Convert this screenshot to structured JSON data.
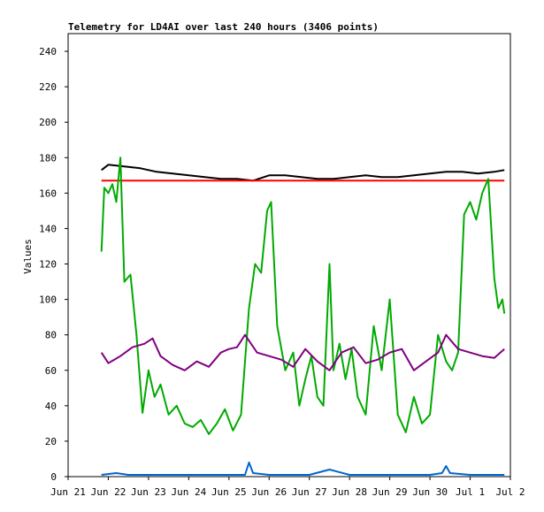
{
  "chart_data": {
    "type": "line",
    "title": "Telemetry for LD4AI over last 240 hours (3406 points)",
    "xlabel": "",
    "ylabel": "Values",
    "xlim": [
      0,
      11
    ],
    "ylim": [
      0,
      250
    ],
    "x_ticks": [
      {
        "value": 0,
        "label": "Jun 21"
      },
      {
        "value": 1,
        "label": "Jun 22"
      },
      {
        "value": 2,
        "label": "Jun 23"
      },
      {
        "value": 3,
        "label": "Jun 24"
      },
      {
        "value": 4,
        "label": "Jun 25"
      },
      {
        "value": 5,
        "label": "Jun 26"
      },
      {
        "value": 6,
        "label": "Jun 27"
      },
      {
        "value": 7,
        "label": "Jun 28"
      },
      {
        "value": 8,
        "label": "Jun 29"
      },
      {
        "value": 9,
        "label": "Jun 30"
      },
      {
        "value": 10,
        "label": "Jul 1"
      },
      {
        "value": 11,
        "label": "Jul 2"
      }
    ],
    "y_ticks": [
      0,
      20,
      40,
      60,
      80,
      100,
      120,
      140,
      160,
      180,
      200,
      220,
      240
    ],
    "grid": false,
    "legend": "none",
    "series": [
      {
        "color": "#000000",
        "x": [
          0.83,
          1.0,
          1.4,
          1.8,
          2.2,
          2.6,
          3.0,
          3.4,
          3.8,
          4.2,
          4.6,
          5.0,
          5.4,
          5.8,
          6.2,
          6.6,
          7.0,
          7.4,
          7.8,
          8.2,
          8.6,
          9.0,
          9.4,
          9.8,
          10.2,
          10.6,
          10.85
        ],
        "y": [
          173,
          176,
          175,
          174,
          172,
          171,
          170,
          169,
          168,
          168,
          167,
          170,
          170,
          169,
          168,
          168,
          169,
          170,
          169,
          169,
          170,
          171,
          172,
          172,
          171,
          172,
          173
        ]
      },
      {
        "color": "#ff0000",
        "x": [
          0.83,
          2.0,
          4.0,
          6.0,
          8.0,
          10.0,
          10.85
        ],
        "y": [
          167,
          167,
          167,
          167,
          167,
          167,
          167
        ]
      },
      {
        "color": "#00aa00",
        "x": [
          0.83,
          0.9,
          1.0,
          1.1,
          1.2,
          1.3,
          1.4,
          1.55,
          1.7,
          1.85,
          2.0,
          2.15,
          2.3,
          2.5,
          2.7,
          2.9,
          3.1,
          3.3,
          3.5,
          3.7,
          3.9,
          4.1,
          4.3,
          4.5,
          4.65,
          4.8,
          4.95,
          5.05,
          5.2,
          5.4,
          5.6,
          5.75,
          5.9,
          6.05,
          6.2,
          6.35,
          6.5,
          6.6,
          6.75,
          6.9,
          7.05,
          7.2,
          7.4,
          7.6,
          7.8,
          8.0,
          8.2,
          8.4,
          8.6,
          8.8,
          9.0,
          9.2,
          9.4,
          9.55,
          9.7,
          9.85,
          10.0,
          10.15,
          10.3,
          10.45,
          10.6,
          10.7,
          10.8,
          10.85
        ],
        "y": [
          127,
          163,
          160,
          165,
          155,
          180,
          110,
          114,
          80,
          36,
          60,
          45,
          52,
          35,
          40,
          30,
          28,
          32,
          24,
          30,
          38,
          26,
          35,
          95,
          120,
          115,
          150,
          155,
          85,
          60,
          70,
          40,
          55,
          68,
          45,
          40,
          120,
          60,
          75,
          55,
          72,
          45,
          35,
          85,
          60,
          100,
          35,
          25,
          45,
          30,
          35,
          80,
          65,
          60,
          70,
          148,
          155,
          145,
          160,
          168,
          112,
          95,
          100,
          92
        ]
      },
      {
        "color": "#800080",
        "x": [
          0.83,
          1.0,
          1.3,
          1.6,
          1.9,
          2.1,
          2.3,
          2.6,
          2.9,
          3.2,
          3.5,
          3.8,
          4.0,
          4.2,
          4.4,
          4.7,
          5.0,
          5.3,
          5.6,
          5.9,
          6.2,
          6.5,
          6.8,
          7.1,
          7.4,
          7.7,
          8.0,
          8.3,
          8.6,
          8.9,
          9.2,
          9.4,
          9.7,
          10.0,
          10.3,
          10.6,
          10.85
        ],
        "y": [
          70,
          64,
          68,
          73,
          75,
          78,
          68,
          63,
          60,
          65,
          62,
          70,
          72,
          73,
          80,
          70,
          68,
          66,
          62,
          72,
          65,
          60,
          70,
          73,
          64,
          66,
          70,
          72,
          60,
          65,
          70,
          80,
          72,
          70,
          68,
          67,
          72
        ]
      },
      {
        "color": "#0066cc",
        "x": [
          0.83,
          1.2,
          1.5,
          2.0,
          2.5,
          3.0,
          3.5,
          4.0,
          4.4,
          4.5,
          4.6,
          5.0,
          5.5,
          6.0,
          6.5,
          7.0,
          7.5,
          8.0,
          8.5,
          9.0,
          9.3,
          9.4,
          9.5,
          10.0,
          10.5,
          10.85
        ],
        "y": [
          1,
          2,
          1,
          1,
          1,
          1,
          1,
          1,
          1,
          8,
          2,
          1,
          1,
          1,
          4,
          1,
          1,
          1,
          1,
          1,
          2,
          6,
          2,
          1,
          1,
          1
        ]
      }
    ]
  }
}
